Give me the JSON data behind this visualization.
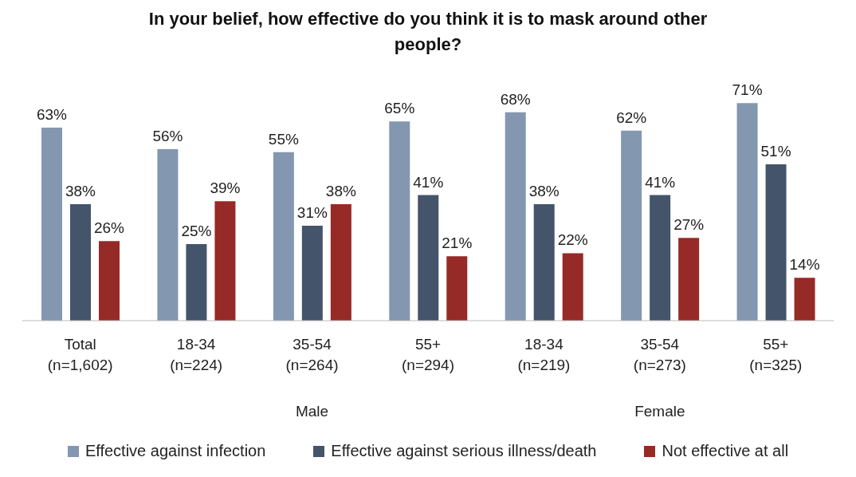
{
  "chart_data": {
    "type": "bar",
    "title": "In your belief, how effective do you think it is to mask around other people?",
    "categories": [
      "Total\n(n=1,602)",
      "18-34\n(n=224)",
      "35-54\n(n=264)",
      "55+\n(n=294)",
      "18-34\n(n=219)",
      "35-54\n(n=273)",
      "55+\n(n=325)"
    ],
    "series": [
      {
        "name": "Effective against infection",
        "color": "#8497b0",
        "values": [
          63,
          56,
          55,
          65,
          68,
          62,
          71
        ],
        "value_labels": [
          "63%",
          "56%",
          "55%",
          "65%",
          "68%",
          "62%",
          "71%"
        ]
      },
      {
        "name": "Effective against serious illness/death",
        "color": "#44546a",
        "values": [
          38,
          25,
          31,
          41,
          38,
          41,
          51
        ],
        "value_labels": [
          "38%",
          "25%",
          "31%",
          "41%",
          "38%",
          "41%",
          "51%"
        ]
      },
      {
        "name": "Not effective at all",
        "color": "#962a27",
        "values": [
          26,
          39,
          38,
          21,
          22,
          27,
          14
        ],
        "value_labels": [
          "26%",
          "39%",
          "38%",
          "21%",
          "22%",
          "27%",
          "14%"
        ]
      }
    ],
    "annotations": [
      "Male",
      "Female"
    ],
    "legend": "bottom",
    "grid": false
  }
}
